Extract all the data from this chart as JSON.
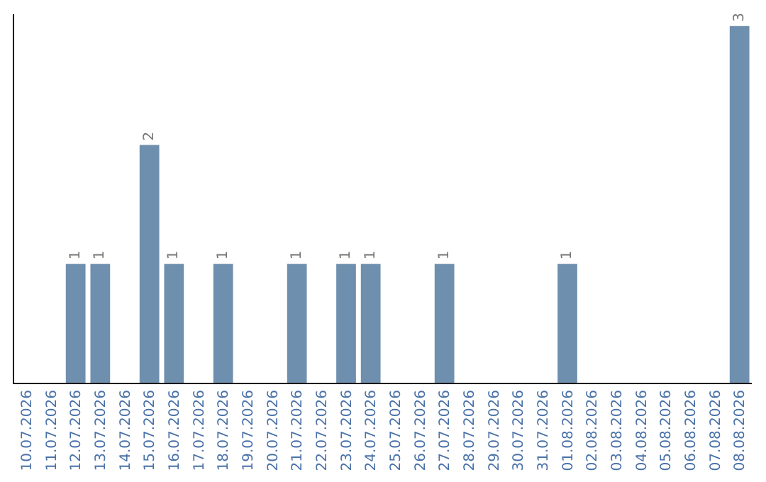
{
  "chart_data": {
    "type": "bar",
    "categories": [
      "10.07.2026",
      "11.07.2026",
      "12.07.2026",
      "13.07.2026",
      "14.07.2026",
      "15.07.2026",
      "16.07.2026",
      "17.07.2026",
      "18.07.2026",
      "19.07.2026",
      "20.07.2026",
      "21.07.2026",
      "22.07.2026",
      "23.07.2026",
      "24.07.2026",
      "25.07.2026",
      "26.07.2026",
      "27.07.2026",
      "28.07.2026",
      "29.07.2026",
      "30.07.2026",
      "31.07.2026",
      "01.08.2026",
      "02.08.2026",
      "03.08.2026",
      "04.08.2026",
      "05.08.2026",
      "06.08.2026",
      "07.08.2026",
      "08.08.2026"
    ],
    "values": [
      0,
      0,
      1,
      1,
      0,
      2,
      1,
      0,
      1,
      0,
      0,
      1,
      0,
      1,
      1,
      0,
      0,
      1,
      0,
      0,
      0,
      0,
      1,
      0,
      0,
      0,
      0,
      0,
      0,
      3
    ],
    "value_labels": [
      null,
      null,
      "1",
      "1",
      null,
      "2",
      "1",
      null,
      "1",
      null,
      null,
      "1",
      null,
      "1",
      "1",
      null,
      null,
      "1",
      null,
      null,
      null,
      null,
      "1",
      null,
      null,
      null,
      null,
      null,
      null,
      "3"
    ],
    "color": "#6f8fae",
    "ylim": [
      0,
      3.1
    ],
    "grid": false,
    "legend": false
  }
}
